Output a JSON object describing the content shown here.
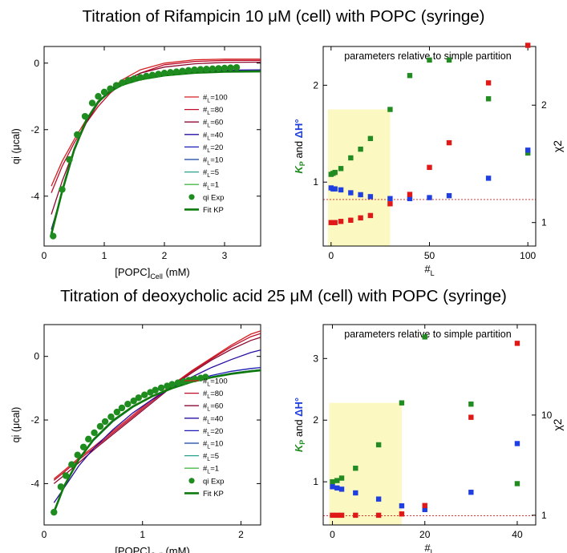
{
  "figure": {
    "titles": [
      "Titration of Rifampicin 10 μM (cell) with POPC (syringe)",
      "Titration of deoxycholic acid 25 μM (cell) with POPC (syringe)"
    ]
  },
  "colors": {
    "exp": "#1e8c1e",
    "fit": "#0e7a0e",
    "kp": "#228b22",
    "dh": "#1f3fe0",
    "chi": "#e01818",
    "shade": "#fbf8c2",
    "nl": [
      "#d42020",
      "#c00c2c",
      "#8c0a30",
      "#2a0ca0",
      "#1a1ab4",
      "#12409c",
      "#2aa08c",
      "#48b848"
    ]
  },
  "chart_data": [
    {
      "type": "line",
      "xlabel": "[POPC]",
      "xlabel_sub": "Cell",
      "xlabel_unit": " (mM)",
      "ylabel": "qi (μcal)",
      "xlim": [
        0,
        3.6
      ],
      "ylim": [
        -5.5,
        0.5
      ],
      "xticks": [
        0,
        1,
        2,
        3
      ],
      "yticks": [
        0,
        -2,
        -4
      ],
      "legend": {
        "position": "center-right",
        "entries": [
          {
            "pre": "#",
            "sub": "L",
            "post": "=100"
          },
          {
            "pre": "#",
            "sub": "L",
            "post": "=80"
          },
          {
            "pre": "#",
            "sub": "L",
            "post": "=60"
          },
          {
            "pre": "#",
            "sub": "L",
            "post": "=40"
          },
          {
            "pre": "#",
            "sub": "L",
            "post": "=20"
          },
          {
            "pre": "#",
            "sub": "L",
            "post": "=10"
          },
          {
            "pre": "#",
            "sub": "L",
            "post": "=5"
          },
          {
            "pre": "#",
            "sub": "L",
            "post": "=1"
          },
          {
            "pre": "qi Exp",
            "sub": "",
            "post": ""
          },
          {
            "pre": "Fit KP",
            "sub": "",
            "post": ""
          }
        ]
      },
      "series_exp": {
        "name": "qi Exp",
        "x": [
          0.15,
          0.3,
          0.42,
          0.55,
          0.68,
          0.8,
          0.9,
          1.0,
          1.1,
          1.2,
          1.3,
          1.4,
          1.5,
          1.6,
          1.7,
          1.8,
          1.9,
          2.0,
          2.1,
          2.2,
          2.3,
          2.4,
          2.5,
          2.6,
          2.7,
          2.8,
          2.9,
          3.0,
          3.1,
          3.2
        ],
        "y": [
          -5.2,
          -3.8,
          -2.9,
          -2.15,
          -1.6,
          -1.2,
          -1.0,
          -0.87,
          -0.77,
          -0.67,
          -0.59,
          -0.52,
          -0.47,
          -0.43,
          -0.39,
          -0.36,
          -0.33,
          -0.3,
          -0.28,
          -0.26,
          -0.24,
          -0.22,
          -0.2,
          -0.19,
          -0.18,
          -0.17,
          -0.16,
          -0.15,
          -0.14,
          -0.13
        ]
      },
      "curves": {
        "x": [
          0.12,
          0.3,
          0.5,
          0.7,
          0.9,
          1.1,
          1.3,
          1.6,
          2.0,
          2.5,
          3.0,
          3.6
        ],
        "series": [
          {
            "name": "#L=100",
            "values": [
              -3.7,
              -2.95,
              -2.3,
              -1.7,
              -1.2,
              -0.8,
              -0.5,
              -0.2,
              0.0,
              0.1,
              0.12,
              0.12
            ]
          },
          {
            "name": "#L=80",
            "values": [
              -3.9,
              -3.1,
              -2.4,
              -1.8,
              -1.3,
              -0.9,
              -0.6,
              -0.3,
              -0.05,
              0.05,
              0.08,
              0.08
            ]
          },
          {
            "name": "#L=60",
            "values": [
              -4.55,
              -3.55,
              -2.6,
              -1.8,
              -1.2,
              -0.8,
              -0.55,
              -0.3,
              -0.12,
              -0.02,
              0.02,
              0.03
            ]
          },
          {
            "name": "#L=40",
            "values": [
              -5.0,
              -3.9,
              -2.65,
              -1.75,
              -1.15,
              -0.82,
              -0.6,
              -0.42,
              -0.3,
              -0.24,
              -0.21,
              -0.2
            ]
          },
          {
            "name": "#L=20",
            "values": [
              -5.1,
              -3.85,
              -2.6,
              -1.72,
              -1.15,
              -0.83,
              -0.62,
              -0.46,
              -0.34,
              -0.27,
              -0.24,
              -0.23
            ]
          },
          {
            "name": "#L=10",
            "values": [
              -5.15,
              -3.85,
              -2.6,
              -1.72,
              -1.15,
              -0.84,
              -0.64,
              -0.48,
              -0.36,
              -0.28,
              -0.25,
              -0.24
            ]
          },
          {
            "name": "#L=5",
            "values": [
              -5.15,
              -3.85,
              -2.6,
              -1.72,
              -1.16,
              -0.85,
              -0.65,
              -0.49,
              -0.37,
              -0.29,
              -0.26,
              -0.25
            ]
          },
          {
            "name": "#L=1",
            "values": [
              -5.15,
              -3.85,
              -2.6,
              -1.72,
              -1.16,
              -0.85,
              -0.65,
              -0.49,
              -0.37,
              -0.29,
              -0.26,
              -0.25
            ]
          }
        ]
      },
      "fit_kp": {
        "name": "Fit KP",
        "values": [
          -5.15,
          -3.85,
          -2.6,
          -1.72,
          -1.16,
          -0.85,
          -0.65,
          -0.49,
          -0.37,
          -0.29,
          -0.26,
          -0.25
        ]
      }
    },
    {
      "type": "scatter",
      "annotation": "parameters relative to simple partition",
      "xlabel": "#",
      "xlabel_sub": "L",
      "xlim": [
        -4,
        104
      ],
      "xticks": [
        0,
        50,
        100
      ],
      "ylim_left": [
        0.34,
        2.4
      ],
      "yticks_left": [
        1,
        2
      ],
      "right_axis_label": "χ2",
      "right_axis": {
        "scale": "linear",
        "min": 0.8,
        "max": 2.5,
        "ticks": [
          1,
          2
        ]
      },
      "shaded_region": {
        "x": [
          0,
          30
        ],
        "y": [
          0.34,
          1.75
        ]
      },
      "reference_line": 0.82,
      "series": [
        {
          "name": "KP",
          "x": [
            0,
            1,
            2,
            5,
            10,
            15,
            20,
            30,
            40,
            50,
            60,
            80,
            100
          ],
          "y": [
            1.08,
            1.09,
            1.1,
            1.14,
            1.25,
            1.34,
            1.45,
            1.75,
            2.1,
            2.26,
            2.26,
            1.86,
            1.3
          ]
        },
        {
          "name": "ΔH°",
          "x": [
            0,
            1,
            2,
            5,
            10,
            15,
            20,
            30,
            40,
            50,
            60,
            80,
            100
          ],
          "y": [
            0.94,
            0.93,
            0.93,
            0.92,
            0.89,
            0.87,
            0.85,
            0.83,
            0.83,
            0.84,
            0.86,
            1.04,
            1.33
          ]
        },
        {
          "name": "χ2",
          "x": [
            0,
            1,
            2,
            5,
            10,
            15,
            20,
            30,
            40,
            50,
            60,
            80,
            100
          ],
          "y": [
            1.0,
            1.0,
            1.0,
            1.01,
            1.02,
            1.04,
            1.06,
            1.16,
            1.24,
            1.47,
            1.68,
            2.19,
            2.51
          ]
        }
      ]
    },
    {
      "type": "line",
      "xlabel": "[POPC]",
      "xlabel_sub": "Cell",
      "xlabel_unit": " (mM)",
      "ylabel": "qi (μcal)",
      "xlim": [
        0,
        2.2
      ],
      "ylim": [
        -5.3,
        1.0
      ],
      "xticks": [
        0,
        1,
        2
      ],
      "yticks": [
        0,
        -2,
        -4
      ],
      "legend": {
        "position": "center-right",
        "entries": [
          {
            "pre": "#",
            "sub": "L",
            "post": "=100"
          },
          {
            "pre": "#",
            "sub": "L",
            "post": "=80"
          },
          {
            "pre": "#",
            "sub": "L",
            "post": "=60"
          },
          {
            "pre": "#",
            "sub": "L",
            "post": "=40"
          },
          {
            "pre": "#",
            "sub": "L",
            "post": "=20"
          },
          {
            "pre": "#",
            "sub": "L",
            "post": "=10"
          },
          {
            "pre": "#",
            "sub": "L",
            "post": "=5"
          },
          {
            "pre": "#",
            "sub": "L",
            "post": "=1"
          },
          {
            "pre": "qi Exp",
            "sub": "",
            "post": ""
          },
          {
            "pre": "Fit KP",
            "sub": "",
            "post": ""
          }
        ]
      },
      "series_exp": {
        "name": "qi Exp",
        "x": [
          0.1,
          0.17,
          0.22,
          0.28,
          0.34,
          0.4,
          0.45,
          0.51,
          0.57,
          0.62,
          0.68,
          0.74,
          0.79,
          0.85,
          0.91,
          0.96,
          1.02,
          1.08,
          1.13,
          1.19,
          1.25,
          1.3,
          1.36,
          1.42,
          1.47,
          1.53,
          1.59,
          1.64
        ],
        "y": [
          -4.9,
          -4.1,
          -3.75,
          -3.4,
          -3.1,
          -2.85,
          -2.6,
          -2.4,
          -2.2,
          -2.05,
          -1.9,
          -1.75,
          -1.62,
          -1.5,
          -1.4,
          -1.3,
          -1.21,
          -1.13,
          -1.06,
          -0.99,
          -0.93,
          -0.88,
          -0.83,
          -0.79,
          -0.75,
          -0.71,
          -0.68,
          -0.65
        ]
      },
      "curves": {
        "x": [
          0.1,
          0.2,
          0.35,
          0.5,
          0.7,
          0.9,
          1.1,
          1.3,
          1.5,
          1.7,
          1.9,
          2.1,
          2.2
        ],
        "series": [
          {
            "name": "#L=100",
            "values": [
              -3.85,
              -3.6,
              -3.2,
              -2.85,
              -2.35,
              -1.85,
              -1.35,
              -0.9,
              -0.45,
              -0.05,
              0.35,
              0.7,
              0.8
            ]
          },
          {
            "name": "#L=80",
            "values": [
              -3.9,
              -3.65,
              -3.25,
              -2.9,
              -2.4,
              -1.9,
              -1.4,
              -0.92,
              -0.48,
              -0.08,
              0.3,
              0.62,
              0.72
            ]
          },
          {
            "name": "#L=60",
            "values": [
              -4.0,
              -3.75,
              -3.35,
              -2.95,
              -2.45,
              -1.95,
              -1.45,
              -0.95,
              -0.52,
              -0.12,
              0.22,
              0.5,
              0.6
            ]
          },
          {
            "name": "#L=40",
            "values": [
              -4.6,
              -4.15,
              -3.45,
              -2.9,
              -2.3,
              -1.78,
              -1.35,
              -0.98,
              -0.65,
              -0.35,
              -0.1,
              0.12,
              0.2
            ]
          },
          {
            "name": "#L=20",
            "values": [
              -4.85,
              -4.1,
              -3.25,
              -2.65,
              -2.05,
              -1.6,
              -1.25,
              -0.98,
              -0.77,
              -0.6,
              -0.47,
              -0.38,
              -0.35
            ]
          },
          {
            "name": "#L=10",
            "values": [
              -4.9,
              -4.1,
              -3.25,
              -2.62,
              -2.02,
              -1.58,
              -1.25,
              -0.99,
              -0.79,
              -0.64,
              -0.53,
              -0.45,
              -0.42
            ]
          },
          {
            "name": "#L=5",
            "values": [
              -4.9,
              -4.1,
              -3.25,
              -2.62,
              -2.02,
              -1.58,
              -1.25,
              -1.0,
              -0.8,
              -0.66,
              -0.55,
              -0.47,
              -0.44
            ]
          },
          {
            "name": "#L=1",
            "values": [
              -4.9,
              -4.1,
              -3.25,
              -2.62,
              -2.02,
              -1.58,
              -1.25,
              -1.0,
              -0.8,
              -0.66,
              -0.55,
              -0.47,
              -0.44
            ]
          }
        ]
      },
      "fit_kp": {
        "name": "Fit KP",
        "values": [
          -4.9,
          -4.1,
          -3.25,
          -2.62,
          -2.02,
          -1.58,
          -1.25,
          -1.0,
          -0.8,
          -0.66,
          -0.55,
          -0.47,
          -0.44
        ]
      }
    },
    {
      "type": "scatter",
      "annotation": "parameters relative to simple partition",
      "xlabel": "#",
      "xlabel_sub": "L",
      "xlim": [
        -2,
        44
      ],
      "xticks": [
        0,
        20,
        40
      ],
      "ylim_left": [
        0.3,
        3.55
      ],
      "yticks_left": [
        1,
        2,
        3
      ],
      "right_axis_label": "χ2",
      "right_axis": {
        "scale": "log",
        "min": 0.8,
        "max": 80,
        "ticks": [
          1,
          10
        ]
      },
      "shaded_region": {
        "x": [
          0,
          15
        ],
        "y": [
          0.3,
          2.28
        ]
      },
      "reference_line": 0.45,
      "series": [
        {
          "name": "KP",
          "x": [
            0,
            1,
            2,
            5,
            10,
            15,
            20,
            30,
            40
          ],
          "y": [
            1.0,
            1.02,
            1.06,
            1.22,
            1.6,
            2.28,
            3.35,
            2.26,
            0.97
          ]
        },
        {
          "name": "ΔH°",
          "x": [
            0,
            1,
            2,
            5,
            10,
            15,
            20,
            30,
            40
          ],
          "y": [
            0.92,
            0.9,
            0.88,
            0.82,
            0.72,
            0.61,
            0.55,
            0.83,
            1.62
          ]
        },
        {
          "name": "χ2",
          "x": [
            0,
            1,
            2,
            5,
            10,
            15,
            20,
            30,
            40
          ],
          "y": [
            1.0,
            1.0,
            1.0,
            1.0,
            1.0,
            1.03,
            1.25,
            9.5,
            52
          ]
        }
      ]
    }
  ]
}
